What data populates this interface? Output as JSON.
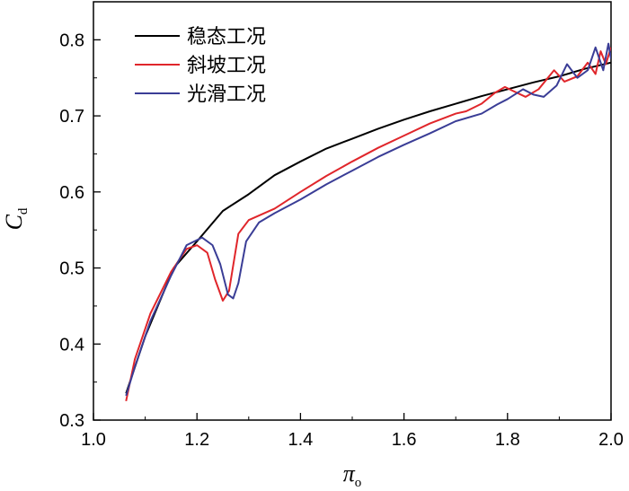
{
  "chart_data": {
    "type": "line",
    "title": "",
    "xlabel": {
      "main": "π",
      "sub": "o"
    },
    "ylabel": {
      "main": "C",
      "sub": "d"
    },
    "xlim": [
      1.0,
      2.0
    ],
    "ylim": [
      0.3,
      0.85
    ],
    "xticks": [
      "1.0",
      "1.2",
      "1.4",
      "1.6",
      "1.8",
      "2.0"
    ],
    "yticks": [
      "0.3",
      "0.4",
      "0.5",
      "0.6",
      "0.7",
      "0.8"
    ],
    "grid": false,
    "legend_position": "top-left",
    "series": [
      {
        "name": "稳态工况",
        "color": "#000000",
        "points": [
          [
            1.063,
            0.335
          ],
          [
            1.1,
            0.41
          ],
          [
            1.155,
            0.5
          ],
          [
            1.2,
            0.535
          ],
          [
            1.25,
            0.575
          ],
          [
            1.3,
            0.597
          ],
          [
            1.35,
            0.622
          ],
          [
            1.4,
            0.64
          ],
          [
            1.45,
            0.657
          ],
          [
            1.5,
            0.67
          ],
          [
            1.55,
            0.683
          ],
          [
            1.6,
            0.695
          ],
          [
            1.65,
            0.706
          ],
          [
            1.7,
            0.716
          ],
          [
            1.75,
            0.726
          ],
          [
            1.8,
            0.735
          ],
          [
            1.85,
            0.744
          ],
          [
            1.9,
            0.752
          ],
          [
            1.95,
            0.762
          ],
          [
            2.0,
            0.77
          ]
        ]
      },
      {
        "name": "斜坡工况",
        "color": "#e0262b",
        "points": [
          [
            1.063,
            0.325
          ],
          [
            1.08,
            0.38
          ],
          [
            1.11,
            0.44
          ],
          [
            1.15,
            0.495
          ],
          [
            1.18,
            0.525
          ],
          [
            1.2,
            0.53
          ],
          [
            1.22,
            0.52
          ],
          [
            1.235,
            0.485
          ],
          [
            1.25,
            0.457
          ],
          [
            1.262,
            0.47
          ],
          [
            1.28,
            0.545
          ],
          [
            1.3,
            0.563
          ],
          [
            1.35,
            0.578
          ],
          [
            1.4,
            0.6
          ],
          [
            1.45,
            0.621
          ],
          [
            1.5,
            0.64
          ],
          [
            1.55,
            0.658
          ],
          [
            1.6,
            0.674
          ],
          [
            1.65,
            0.69
          ],
          [
            1.7,
            0.703
          ],
          [
            1.72,
            0.706
          ],
          [
            1.75,
            0.716
          ],
          [
            1.775,
            0.73
          ],
          [
            1.795,
            0.738
          ],
          [
            1.81,
            0.733
          ],
          [
            1.835,
            0.725
          ],
          [
            1.86,
            0.735
          ],
          [
            1.89,
            0.76
          ],
          [
            1.91,
            0.745
          ],
          [
            1.935,
            0.752
          ],
          [
            1.955,
            0.77
          ],
          [
            1.97,
            0.755
          ],
          [
            1.98,
            0.785
          ],
          [
            1.99,
            0.768
          ],
          [
            2.0,
            0.79
          ]
        ]
      },
      {
        "name": "光滑工况",
        "color": "#3a3d96",
        "points": [
          [
            1.063,
            0.332
          ],
          [
            1.08,
            0.37
          ],
          [
            1.11,
            0.43
          ],
          [
            1.15,
            0.49
          ],
          [
            1.18,
            0.53
          ],
          [
            1.21,
            0.54
          ],
          [
            1.23,
            0.53
          ],
          [
            1.245,
            0.505
          ],
          [
            1.26,
            0.465
          ],
          [
            1.27,
            0.46
          ],
          [
            1.28,
            0.48
          ],
          [
            1.295,
            0.535
          ],
          [
            1.32,
            0.56
          ],
          [
            1.35,
            0.572
          ],
          [
            1.4,
            0.59
          ],
          [
            1.45,
            0.61
          ],
          [
            1.5,
            0.628
          ],
          [
            1.55,
            0.646
          ],
          [
            1.6,
            0.662
          ],
          [
            1.65,
            0.677
          ],
          [
            1.7,
            0.693
          ],
          [
            1.75,
            0.703
          ],
          [
            1.78,
            0.715
          ],
          [
            1.8,
            0.722
          ],
          [
            1.83,
            0.735
          ],
          [
            1.85,
            0.728
          ],
          [
            1.87,
            0.725
          ],
          [
            1.895,
            0.74
          ],
          [
            1.915,
            0.768
          ],
          [
            1.935,
            0.75
          ],
          [
            1.955,
            0.76
          ],
          [
            1.97,
            0.79
          ],
          [
            1.985,
            0.76
          ],
          [
            1.995,
            0.795
          ],
          [
            2.0,
            0.775
          ]
        ]
      }
    ]
  }
}
